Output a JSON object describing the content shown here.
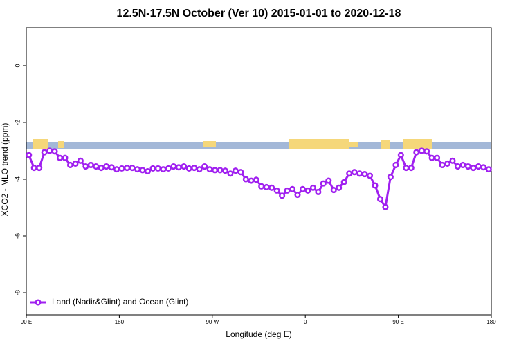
{
  "chart_data": {
    "type": "line",
    "title": "12.5N-17.5N October (Ver 10)   2015-01-01 to 2020-12-18",
    "x_label": "Longitude (deg E)",
    "y_label": "XCO2 - MLO trend (ppm)",
    "x": [
      92.5,
      97.5,
      102.5,
      107.5,
      112.5,
      117.5,
      122.5,
      127.5,
      132.5,
      137.5,
      142.5,
      147.5,
      152.5,
      157.5,
      162.5,
      167.5,
      172.5,
      177.5,
      182.5,
      187.5,
      192.5,
      197.5,
      202.5,
      207.5,
      212.5,
      217.5,
      222.5,
      227.5,
      232.5,
      237.5,
      242.5,
      247.5,
      252.5,
      257.5,
      262.5,
      267.5,
      272.5,
      277.5,
      282.5,
      287.5,
      292.5,
      297.5,
      302.5,
      307.5,
      312.5,
      317.5,
      322.5,
      327.5,
      332.5,
      337.5,
      342.5,
      347.5,
      352.5,
      357.5,
      362.5,
      367.5,
      372.5,
      377.5,
      382.5,
      387.5,
      392.5,
      397.5,
      402.5,
      407.5,
      412.5,
      417.5,
      422.5,
      427.5,
      432.5,
      437.5,
      442.5,
      447.5,
      452.5,
      457.5,
      462.5,
      467.5,
      472.5,
      477.5,
      482.5,
      487.5,
      492.5,
      497.5,
      502.5,
      507.5,
      512.5,
      517.5,
      522.5,
      527.5,
      532.5,
      537.5
    ],
    "series": [
      {
        "name": "Land (Nadir&Glint) and Ocean (Glint)",
        "color": "#a020f0",
        "values": [
          -3.15,
          -3.6,
          -3.6,
          -3.05,
          -3.0,
          -3.02,
          -3.25,
          -3.25,
          -3.5,
          -3.45,
          -3.35,
          -3.55,
          -3.5,
          -3.55,
          -3.6,
          -3.55,
          -3.58,
          -3.65,
          -3.62,
          -3.6,
          -3.6,
          -3.65,
          -3.68,
          -3.72,
          -3.62,
          -3.62,
          -3.65,
          -3.62,
          -3.55,
          -3.58,
          -3.55,
          -3.62,
          -3.6,
          -3.65,
          -3.55,
          -3.65,
          -3.68,
          -3.68,
          -3.7,
          -3.8,
          -3.7,
          -3.75,
          -4.0,
          -4.05,
          -4.02,
          -4.25,
          -4.28,
          -4.3,
          -4.4,
          -4.58,
          -4.4,
          -4.35,
          -4.55,
          -4.35,
          -4.4,
          -4.3,
          -4.45,
          -4.15,
          -4.05,
          -4.38,
          -4.3,
          -4.1,
          -3.8,
          -3.75,
          -3.8,
          -3.82,
          -3.88,
          -4.22,
          -4.7,
          -4.98,
          -3.92,
          -3.5,
          -3.15,
          -3.6,
          -3.6,
          -3.05,
          -3.0,
          -3.02,
          -3.25,
          -3.25,
          -3.5,
          -3.45,
          -3.35,
          -3.55,
          -3.5,
          -3.55,
          -3.6,
          -3.55,
          -3.58,
          -3.65
        ]
      }
    ],
    "xlim": [
      90,
      540
    ],
    "xticks": [
      {
        "value": 90,
        "label": "90 E"
      },
      {
        "value": 180,
        "label": "180"
      },
      {
        "value": 270,
        "label": "90 W"
      },
      {
        "value": 360,
        "label": "0"
      },
      {
        "value": 450,
        "label": "90 E"
      },
      {
        "value": 540,
        "label": "180"
      }
    ],
    "ylim": [
      -8.78,
      1.34
    ],
    "yticks": [
      0,
      -2,
      -4,
      -6,
      -8
    ],
    "legend": "bottom-left"
  }
}
